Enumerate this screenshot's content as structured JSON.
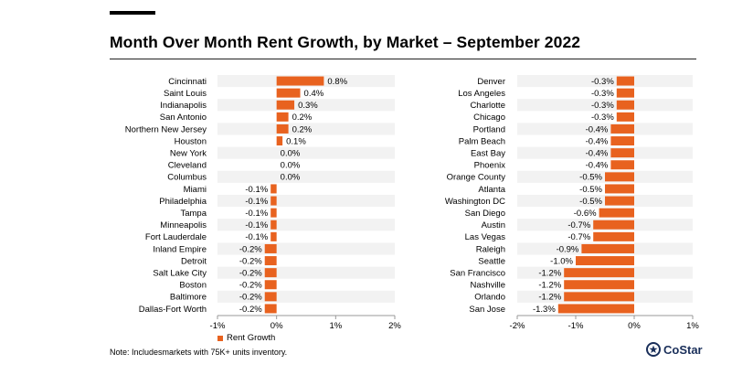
{
  "title": "Month Over Month Rent Growth, by Market – September 2022",
  "note": "Note: Includesmarkets with 75K+ units inventory.",
  "logo_text": "CoStar",
  "colors": {
    "bar": "#e8621f",
    "band": "#f2f2f2",
    "axis": "#999999"
  },
  "legend": {
    "label": "Rent Growth"
  },
  "chart_data": [
    {
      "type": "bar",
      "orientation": "horizontal",
      "categories": [
        "Cincinnati",
        "Saint Louis",
        "Indianapolis",
        "San Antonio",
        "Northern New Jersey",
        "Houston",
        "New York",
        "Cleveland",
        "Columbus",
        "Miami",
        "Philadelphia",
        "Tampa",
        "Minneapolis",
        "Fort Lauderdale",
        "Inland Empire",
        "Detroit",
        "Salt Lake City",
        "Boston",
        "Baltimore",
        "Dallas-Fort Worth"
      ],
      "values": [
        0.8,
        0.4,
        0.3,
        0.2,
        0.2,
        0.1,
        0.0,
        0.0,
        0.0,
        -0.1,
        -0.1,
        -0.1,
        -0.1,
        -0.1,
        -0.2,
        -0.2,
        -0.2,
        -0.2,
        -0.2,
        -0.2
      ],
      "labels": [
        "0.8%",
        "0.4%",
        "0.3%",
        "0.2%",
        "0.2%",
        "0.1%",
        "0.0%",
        "0.0%",
        "0.0%",
        "-0.1%",
        "-0.1%",
        "-0.1%",
        "-0.1%",
        "-0.1%",
        "-0.2%",
        "-0.2%",
        "-0.2%",
        "-0.2%",
        "-0.2%",
        "-0.2%"
      ],
      "series": [
        {
          "name": "Rent Growth"
        }
      ],
      "xlim": [
        -1,
        2
      ],
      "xticks": [
        "-1%",
        "0%",
        "1%",
        "2%"
      ],
      "xtick_values": [
        -1,
        0,
        1,
        2
      ]
    },
    {
      "type": "bar",
      "orientation": "horizontal",
      "categories": [
        "Denver",
        "Los Angeles",
        "Charlotte",
        "Chicago",
        "Portland",
        "Palm Beach",
        "East Bay",
        "Phoenix",
        "Orange County",
        "Atlanta",
        "Washington DC",
        "San Diego",
        "Austin",
        "Las Vegas",
        "Raleigh",
        "Seattle",
        "San Francisco",
        "Nashville",
        "Orlando",
        "San Jose"
      ],
      "values": [
        -0.3,
        -0.3,
        -0.3,
        -0.3,
        -0.4,
        -0.4,
        -0.4,
        -0.4,
        -0.5,
        -0.5,
        -0.5,
        -0.6,
        -0.7,
        -0.7,
        -0.9,
        -1.0,
        -1.2,
        -1.2,
        -1.2,
        -1.3
      ],
      "labels": [
        "-0.3%",
        "-0.3%",
        "-0.3%",
        "-0.3%",
        "-0.4%",
        "-0.4%",
        "-0.4%",
        "-0.4%",
        "-0.5%",
        "-0.5%",
        "-0.5%",
        "-0.6%",
        "-0.7%",
        "-0.7%",
        "-0.9%",
        "-1.0%",
        "-1.2%",
        "-1.2%",
        "-1.2%",
        "-1.3%"
      ],
      "series": [
        {
          "name": "Rent Growth"
        }
      ],
      "xlim": [
        -2,
        1
      ],
      "xticks": [
        "-2%",
        "-1%",
        "0%",
        "1%"
      ],
      "xtick_values": [
        -2,
        -1,
        0,
        1
      ]
    }
  ]
}
